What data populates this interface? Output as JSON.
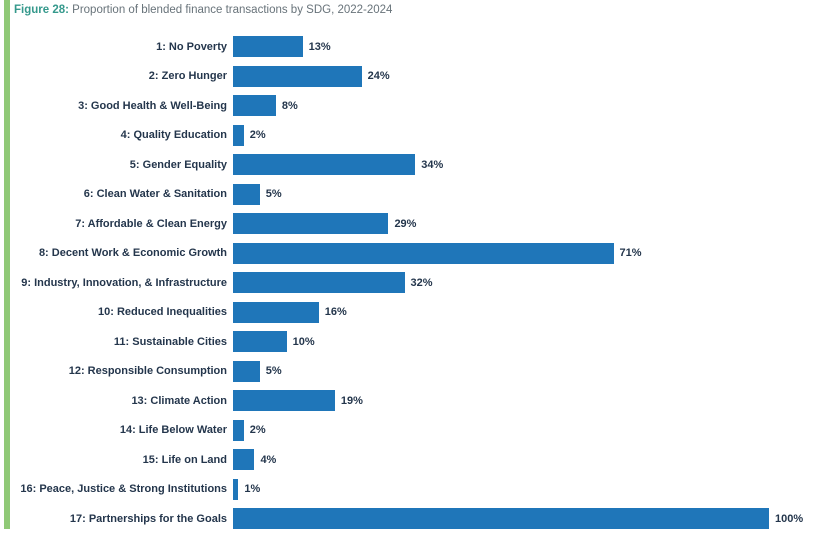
{
  "figure": {
    "label": "Figure 28:",
    "title": " Proportion of blended finance transactions by SDG, 2022-2024"
  },
  "colors": {
    "accent_green": "#90c977",
    "bar_blue": "#1f76b9",
    "label_dark": "#24364c",
    "title_teal": "#35998c",
    "title_gray": "#68737a"
  },
  "chart_data": {
    "type": "bar",
    "orientation": "horizontal",
    "title": "Figure 28: Proportion of blended finance transactions by SDG, 2022-2024",
    "xlabel": "",
    "ylabel": "",
    "xlim": [
      0,
      100
    ],
    "grid": false,
    "legend": false,
    "value_suffix": "%",
    "bar_color": "#1f76b9",
    "categories": [
      "1: No Poverty",
      "2: Zero Hunger",
      "3: Good Health & Well-Being",
      "4: Quality Education",
      "5: Gender Equality",
      "6: Clean Water & Sanitation",
      "7: Affordable & Clean Energy",
      "8: Decent Work & Economic Growth",
      "9: Industry, Innovation, & Infrastructure",
      "10: Reduced Inequalities",
      "11: Sustainable Cities",
      "12: Responsible Consumption",
      "13: Climate Action",
      "14: Life Below Water",
      "15: Life on Land",
      "16: Peace, Justice & Strong Institutions",
      "17: Partnerships for the Goals"
    ],
    "values": [
      13,
      24,
      8,
      2,
      34,
      5,
      29,
      71,
      32,
      16,
      10,
      5,
      19,
      2,
      4,
      1,
      100
    ],
    "value_labels": [
      "13%",
      "24%",
      "8%",
      "2%",
      "34%",
      "5%",
      "29%",
      "71%",
      "32%",
      "16%",
      "10%",
      "5%",
      "19%",
      "2%",
      "4%",
      "1%",
      "100%"
    ]
  }
}
